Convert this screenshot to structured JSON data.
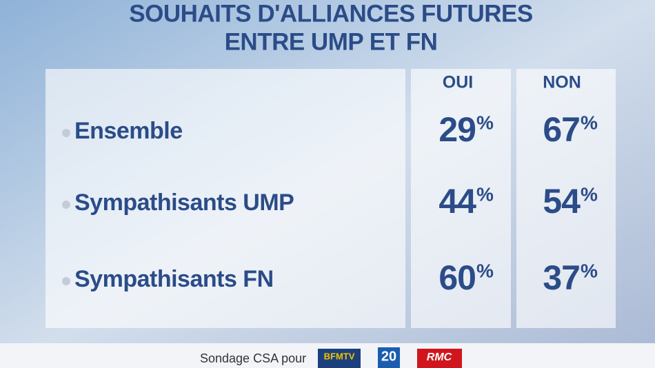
{
  "header": {
    "title_lines": [
      "SOUHAITS D'ALLIANCES FUTURES",
      "ENTRE UMP ET FN"
    ]
  },
  "table": {
    "columns": [
      "OUI",
      "NON"
    ],
    "rows": [
      {
        "label": "Ensemble",
        "oui": {
          "number": 29,
          "unit": "%"
        },
        "non": {
          "number": 67,
          "unit": "%"
        }
      },
      {
        "label": "Sympathisants UMP",
        "oui": {
          "number": 44,
          "unit": "%"
        },
        "non": {
          "number": 54,
          "unit": "%"
        }
      },
      {
        "label": "Sympathisants FN",
        "oui": {
          "number": 60,
          "unit": "%"
        },
        "non": {
          "number": 37,
          "unit": "%"
        }
      }
    ]
  },
  "footer": {
    "source": "Sondage CSA pour",
    "logos": [
      "BFMTV",
      "20",
      "RMC"
    ]
  }
}
